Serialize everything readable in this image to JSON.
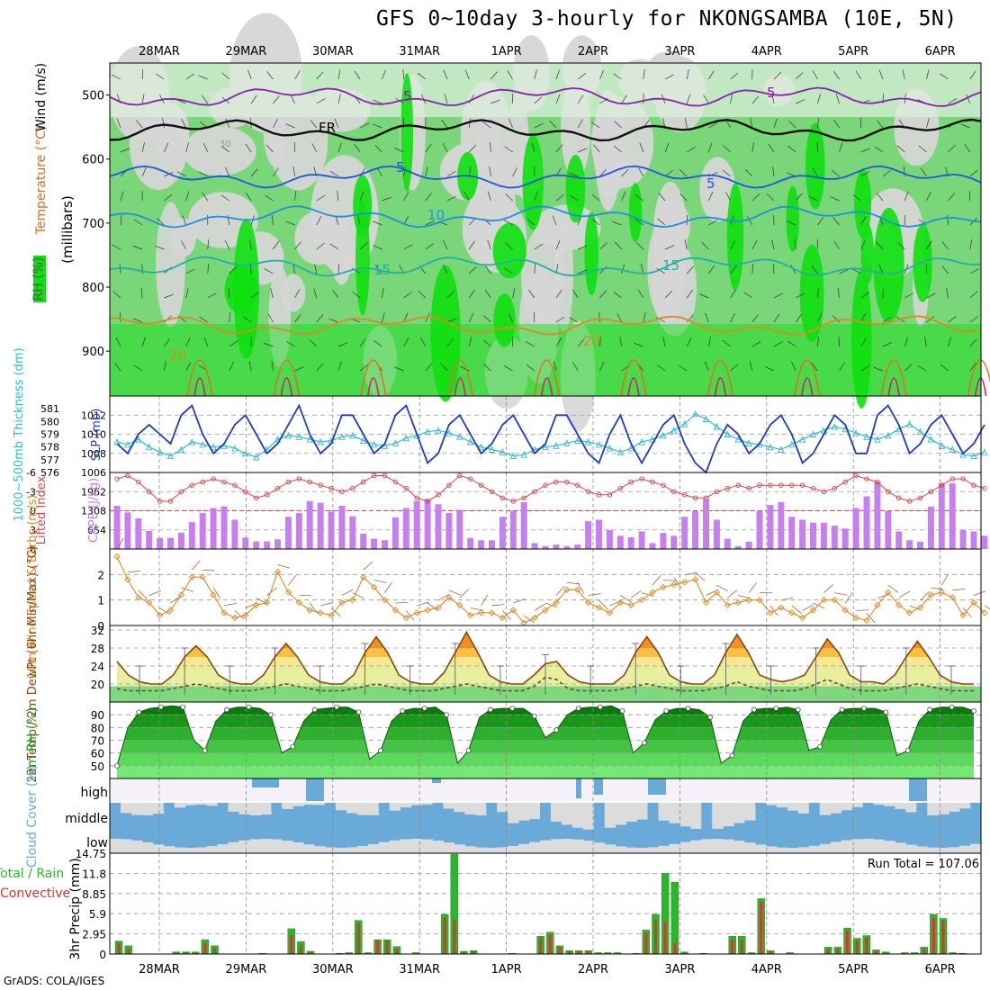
{
  "title": "GFS 0~10day 3-hourly for NKONGSAMBA (10E, 5N)",
  "credit": "GrADS: COLA/IGES",
  "colors": {
    "green_light": "#dbeedb",
    "green_mid": "#79d679",
    "green_bright": "#0de00d",
    "grey_light": "#d6d6d6",
    "slp": "#1e3ccb",
    "thickness": "#33bbcc",
    "li": "#dd4444",
    "cape": "#c77ff0",
    "wind": "#e08a22",
    "barb": "#9a6a40",
    "rain": "#2ab82a",
    "conv": "#dd3333",
    "cloud": "#6aaad8",
    "cloud_bg": "#dcdcdc"
  },
  "chart_data": [
    {
      "type": "heatmap",
      "name": "upper-air time-height section",
      "x_tick_labels": [
        "28MAR",
        "29MAR",
        "30MAR",
        "31MAR",
        "1APR",
        "2APR",
        "3APR",
        "4APR",
        "5APR",
        "6APR"
      ],
      "y_tick_labels": [
        "500",
        "600",
        "700",
        "800",
        "900"
      ],
      "ylim": [
        450,
        970
      ],
      "ylabel_parts": {
        "rh": "RH (%)",
        "temp": "Temperature (°C)",
        "wind": "Wind (m/s)",
        "pressure": "(millibars)"
      },
      "contour_labels": [
        "5",
        "5",
        "FR",
        "30",
        "5",
        "5",
        "10",
        "15",
        "15",
        "20",
        "20"
      ],
      "isotherms": [
        {
          "name": "-5C",
          "color": "#8822aa",
          "level": 503
        },
        {
          "name": "0C (FR)",
          "color": "#111111",
          "level": 555
        },
        {
          "name": "5C",
          "color": "#2255dd",
          "level": 628
        },
        {
          "name": "10C",
          "color": "#1e90dd",
          "level": 690
        },
        {
          "name": "15C",
          "color": "#22b0a0",
          "level": 768
        },
        {
          "name": "20C",
          "color": "#e08822",
          "level": 860
        }
      ]
    },
    {
      "type": "line",
      "name": "SLP and 1000-500mb thickness",
      "ylabel": "SLP (mb)",
      "ylabel2": "1000~500mb Thickness (dm)",
      "ylim": [
        1006,
        1014
      ],
      "y_ticks": [
        "1012",
        "1010",
        "1008",
        "1006"
      ],
      "y2_ticks": [
        "581",
        "580",
        "579",
        "578",
        "577",
        "576"
      ],
      "series": [
        {
          "name": "SLP",
          "values": [
            1009,
            1008,
            1010,
            1011,
            1010,
            1009,
            1012,
            1013,
            1010,
            1008,
            1009,
            1011,
            1012,
            1010,
            1008,
            1009,
            1011,
            1013,
            1010,
            1008,
            1009,
            1012,
            1012,
            1010,
            1008,
            1009,
            1012,
            1013,
            1010,
            1007,
            1008,
            1011,
            1012,
            1010,
            1008,
            1009,
            1011,
            1012,
            1010,
            1008,
            1009,
            1012,
            1012,
            1010,
            1008,
            1007,
            1010,
            1012,
            1009,
            1007,
            1009,
            1011,
            1012,
            1009,
            1007,
            1006,
            1009,
            1011,
            1010,
            1008,
            1009,
            1011,
            1012,
            1010,
            1007,
            1008,
            1010,
            1012,
            1011,
            1008,
            1008,
            1012,
            1013,
            1011,
            1008,
            1009,
            1011,
            1012,
            1010,
            1008,
            1009,
            1011
          ]
        },
        {
          "name": "Thickness",
          "values": [
            578.4,
            578.2,
            578.6,
            578.0,
            577.6,
            577.3,
            577.8,
            578.4,
            578.2,
            578.0,
            578.1,
            577.9,
            577.5,
            577.2,
            577.8,
            578.6,
            578.9,
            578.8,
            578.6,
            578.4,
            578.5,
            578.8,
            578.9,
            578.5,
            578.2,
            578.1,
            578.3,
            578.7,
            578.9,
            579.2,
            579.3,
            579.1,
            578.8,
            578.4,
            578.0,
            577.8,
            577.6,
            577.3,
            577.4,
            577.8,
            578.0,
            578.1,
            578.3,
            578.5,
            578.4,
            578.2,
            577.9,
            577.6,
            577.9,
            578.4,
            578.6,
            578.9,
            579.3,
            579.8,
            580.6,
            580.2,
            579.6,
            579.0,
            578.6,
            578.3,
            578.2,
            578.0,
            577.8,
            578.2,
            578.6,
            579.0,
            579.3,
            579.6,
            579.4,
            579.1,
            578.8,
            578.6,
            578.9,
            579.4,
            579.8,
            579.2,
            578.6,
            578.1,
            577.8,
            577.4,
            577.3,
            577.6
          ]
        }
      ]
    },
    {
      "type": "bar",
      "name": "Lifted Index and CAPE",
      "ylabel": "Lifted Index",
      "ylabel2": "CAPE (J/kg)",
      "li_ticks": [
        "-6",
        "-3",
        "0",
        "3",
        "6"
      ],
      "cape_ticks": [
        "1962",
        "1308",
        "654"
      ],
      "cape_max": 2616,
      "series": [
        {
          "name": "LI",
          "values": [
            -5,
            -5.5,
            -4.5,
            -3,
            -1.5,
            -1.5,
            -3,
            -4,
            -4.5,
            -5,
            -4.5,
            -4,
            -3,
            -2,
            -2.5,
            -3.5,
            -4.5,
            -5,
            -4.5,
            -4,
            -3.5,
            -3,
            -3.5,
            -4.5,
            -5.5,
            -5.5,
            -4.5,
            -3.5,
            -2,
            -1.5,
            -2.5,
            -4,
            -5.5,
            -5,
            -4,
            -3,
            -2,
            -1.5,
            -2,
            -3,
            -4,
            -4.5,
            -4.5,
            -4,
            -3,
            -2.5,
            -2.5,
            -3.5,
            -4.5,
            -5,
            -4.5,
            -4,
            -3,
            -2.5,
            -2,
            -2,
            -3,
            -3.5,
            -4,
            -3.5,
            -4,
            -4,
            -4,
            -4,
            -4,
            -3.5,
            -3,
            -3.5,
            -4.5,
            -5.5,
            -5,
            -4.5,
            -3,
            -2,
            -1.5,
            -2,
            -3,
            -4,
            -5,
            -5,
            -4,
            -3.5
          ]
        },
        {
          "name": "CAPE",
          "values": [
            1480,
            1250,
            1050,
            620,
            380,
            380,
            560,
            920,
            1230,
            1400,
            1460,
            1000,
            390,
            260,
            260,
            330,
            1100,
            1230,
            1640,
            1580,
            1280,
            1480,
            1120,
            520,
            350,
            300,
            1080,
            1400,
            1640,
            1700,
            1530,
            1230,
            1340,
            380,
            300,
            300,
            1100,
            1300,
            1600,
            200,
            100,
            150,
            100,
            150,
            950,
            1000,
            650,
            450,
            400,
            600,
            200,
            550,
            450,
            1100,
            1300,
            1700,
            1000,
            350,
            100,
            250,
            1300,
            1500,
            1600,
            1100,
            1000,
            900,
            900,
            800,
            700,
            1400,
            1800,
            2300,
            1300,
            600,
            300,
            250,
            1450,
            2250,
            2250,
            650,
            600,
            450
          ]
        }
      ]
    },
    {
      "type": "line",
      "name": "10m wind speed and barbs",
      "ylabel": "10m Wind Speed & Barbs (m/s)",
      "ylim": [
        0,
        3
      ],
      "y_ticks": [
        "2",
        "1",
        "0"
      ],
      "series": [
        {
          "name": "Wind speed",
          "values": [
            2.7,
            1.8,
            1.1,
            0.9,
            0.4,
            0.6,
            1.2,
            1.9,
            1.9,
            1.2,
            0.5,
            0.3,
            0.4,
            0.8,
            0.9,
            2.1,
            1.3,
            0.9,
            0.6,
            0.5,
            0.4,
            0.9,
            1.0,
            1.9,
            1.5,
            1.0,
            0.6,
            0.3,
            0.5,
            0.6,
            0.7,
            1.1,
            0.8,
            0.4,
            0.5,
            0.5,
            0.3,
            0.6,
            0.1,
            0.3,
            0.6,
            0.9,
            1.4,
            1.4,
            0.9,
            0.7,
            0.5,
            0.9,
            0.8,
            1.0,
            1.3,
            1.5,
            1.6,
            1.7,
            1.8,
            0.9,
            1.3,
            0.8,
            0.9,
            1.0,
            1.0,
            0.5,
            0.7,
            0.5,
            0.3,
            0.6,
            1.0,
            1.0,
            0.6,
            0.3,
            0.2,
            0.8,
            1.3,
            0.8,
            0.5,
            0.7,
            1.2,
            1.3,
            1.1,
            0.4,
            0.9,
            0.5
          ]
        }
      ]
    },
    {
      "type": "area",
      "name": "2m temperature and dew point",
      "ylabel": "2m Temp / 2m DewPt (6hr Min/Max) (°C)",
      "y_ticks": [
        "32",
        "28",
        "24",
        "20"
      ],
      "ylim": [
        16,
        33
      ],
      "series": [
        {
          "name": "Temp",
          "values": [
            25,
            22,
            20.5,
            20,
            20,
            22,
            26,
            28.5,
            26,
            22,
            20.5,
            20,
            20,
            22,
            26,
            29,
            26,
            22,
            20.5,
            20,
            20,
            22,
            27,
            30.5,
            27,
            22,
            20.5,
            20,
            20,
            22.5,
            27,
            31.5,
            27,
            22,
            20.5,
            20,
            20,
            22,
            24.5,
            25,
            22,
            20.5,
            20,
            20,
            20,
            22,
            27,
            30.5,
            27,
            22,
            20.5,
            20,
            20,
            22,
            27,
            31,
            27,
            22,
            21,
            20.5,
            21,
            22,
            26,
            30,
            27,
            22,
            20.5,
            20.5,
            20,
            22,
            26,
            29.5,
            26,
            22,
            20.5,
            20,
            20
          ]
        },
        {
          "name": "DewPt",
          "values": [
            19,
            18.5,
            18.5,
            18.5,
            18.5,
            19,
            19.5,
            20,
            19.5,
            19,
            18.5,
            18.5,
            18.5,
            19,
            19.5,
            20,
            19.5,
            19,
            18.5,
            18.5,
            18.5,
            19,
            19.5,
            20,
            19.5,
            19,
            18.5,
            18.5,
            18.5,
            19,
            19.5,
            20,
            19.5,
            19,
            18.5,
            18.5,
            18.5,
            19.5,
            21.5,
            21,
            19,
            18.5,
            18.5,
            18.5,
            18.5,
            19,
            19.5,
            20,
            19.5,
            19,
            18.5,
            18.5,
            18.5,
            19,
            19.5,
            20.5,
            19.5,
            19,
            18.5,
            18.5,
            18.5,
            19,
            20,
            21,
            20,
            19,
            18.5,
            18.5,
            18.5,
            19,
            19.5,
            20,
            19.5,
            19,
            18.5,
            18.5,
            18.5
          ]
        }
      ]
    },
    {
      "type": "area",
      "name": "2m relative humidity",
      "ylabel": "2m RH (%)",
      "y_ticks": [
        "90",
        "80",
        "70",
        "60",
        "50"
      ],
      "ylim": [
        40,
        100
      ],
      "series": [
        {
          "name": "RH",
          "values": [
            50,
            80,
            92,
            95,
            96,
            97,
            96,
            70,
            62,
            85,
            94,
            96,
            96,
            95,
            90,
            60,
            65,
            85,
            94,
            95,
            96,
            96,
            92,
            55,
            62,
            85,
            93,
            95,
            95,
            96,
            90,
            52,
            62,
            88,
            94,
            95,
            95,
            95,
            89,
            72,
            78,
            90,
            95,
            96,
            96,
            97,
            93,
            60,
            68,
            86,
            93,
            95,
            95,
            94,
            88,
            52,
            58,
            85,
            94,
            95,
            95,
            96,
            94,
            62,
            65,
            86,
            94,
            95,
            95,
            95,
            92,
            58,
            62,
            85,
            94,
            96,
            96,
            96,
            93
          ]
        }
      ]
    },
    {
      "type": "bar",
      "name": "Cloud cover",
      "ylabel": "Cloud Cover (%)",
      "y_labels": [
        "high",
        "middle",
        "low"
      ]
    },
    {
      "type": "bar",
      "name": "3hr precipitation",
      "ylabel": "3hr Precip (mm)",
      "ylabel_side": "Total / Rain / Convective",
      "y_ticks": [
        "14.75",
        "11.8",
        "8.85",
        "5.9",
        "2.95",
        "0"
      ],
      "ylim": [
        0,
        14.75
      ],
      "run_total_label": "Run Total = 107.06",
      "series": [
        {
          "name": "Total",
          "values": [
            1.9,
            1.2,
            0,
            0,
            0,
            0,
            0.3,
            0.3,
            0.3,
            2.1,
            1.2,
            0,
            0,
            0,
            0,
            0.1,
            0,
            0,
            3.7,
            1.8,
            0.4,
            0,
            0,
            0.1,
            0.2,
            4.9,
            0.2,
            2.1,
            2.1,
            1.1,
            0,
            0.2,
            0,
            0,
            5.8,
            14.6,
            0.4,
            0.5,
            0,
            0,
            0,
            0.1,
            0,
            0,
            2.6,
            3.2,
            1.2,
            0.5,
            0.5,
            0.5,
            0.2,
            0.2,
            0.2,
            0,
            0.1,
            3.5,
            5.8,
            11.8,
            10.5,
            0.3,
            0,
            0.1,
            0,
            0,
            2.6,
            2.6,
            0.2,
            8.1,
            0.5,
            0,
            0.2,
            0,
            0,
            0,
            1.0,
            1.0,
            3.8,
            2.3,
            2.7,
            0.6,
            0.3,
            0,
            0.2,
            0.2,
            1.0,
            5.8,
            5.2,
            0.2,
            0.1,
            0
          ]
        },
        {
          "name": "Convective",
          "values": [
            1.6,
            0.8,
            0,
            0,
            0,
            0,
            0.2,
            0.2,
            0.2,
            1.6,
            0.9,
            0,
            0,
            0,
            0,
            0,
            0,
            0,
            2.8,
            1.3,
            0.3,
            0,
            0,
            0,
            0.1,
            4.5,
            0.1,
            2.0,
            2.0,
            0.8,
            0,
            0.1,
            0,
            0,
            5.3,
            5.0,
            0.3,
            0.4,
            0,
            0,
            0,
            0,
            0,
            0,
            2.3,
            2.8,
            1.0,
            0.4,
            0.4,
            0.4,
            0.1,
            0.1,
            0.1,
            0,
            0,
            3.1,
            5.0,
            4.8,
            1.6,
            0.2,
            0,
            0,
            0,
            0,
            2.1,
            2.1,
            0.1,
            7.6,
            0.4,
            0,
            0.1,
            0,
            0,
            0,
            0.8,
            0.8,
            3.4,
            2.0,
            2.4,
            0.5,
            0.2,
            0,
            0.1,
            0.1,
            0.8,
            5.3,
            4.9,
            0.1,
            0,
            0
          ]
        }
      ]
    }
  ]
}
